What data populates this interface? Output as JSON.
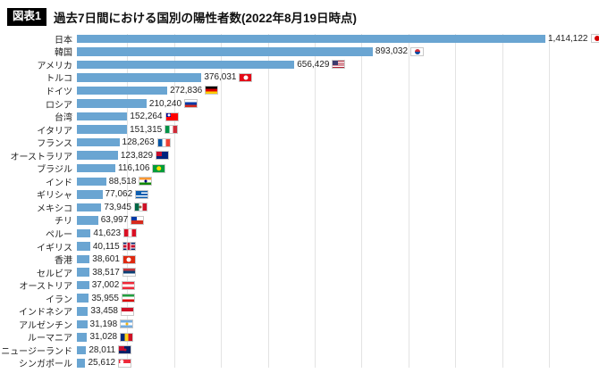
{
  "header": {
    "tag": "図表1",
    "title": "過去7日間における国別の陽性者数(2022年8月19日時点)"
  },
  "chart_data": {
    "type": "bar",
    "orientation": "horizontal",
    "title": "過去7日間における国別の陽性者数(2022年8月19日時点)",
    "xlabel": "",
    "ylabel": "",
    "xlim": [
      0,
      1414122
    ],
    "grid": true,
    "bar_color": "#6aa5d2",
    "gridline_color": "#e3e3e3",
    "rows": [
      {
        "id": "japan",
        "country": "日本",
        "value": 1414122,
        "value_label": "1,414,122",
        "flag": {
          "o": "h",
          "c": [
            "#ffffff"
          ],
          "e": {
            "c": "#d30000",
            "s": 0.6
          }
        }
      },
      {
        "id": "south-korea",
        "country": "韓国",
        "value": 893032,
        "value_label": "893,032",
        "flag": {
          "o": "h",
          "c": [
            "#ffffff"
          ],
          "e": {
            "c": [
              "#cd2e3a",
              "#0047a0"
            ],
            "s": 0.6
          }
        }
      },
      {
        "id": "usa",
        "country": "アメリカ",
        "value": 656429,
        "value_label": "656,429",
        "flag": {
          "o": "h",
          "c": [
            "#b22234",
            "#ffffff",
            "#b22234",
            "#ffffff",
            "#b22234",
            "#ffffff",
            "#b22234"
          ],
          "canton": "#3c3b6e"
        }
      },
      {
        "id": "turkey",
        "country": "トルコ",
        "value": 376031,
        "value_label": "376,031",
        "flag": {
          "o": "h",
          "c": [
            "#e30a17"
          ],
          "e": {
            "c": "#ffffff",
            "s": 0.5
          }
        }
      },
      {
        "id": "germany",
        "country": "ドイツ",
        "value": 272836,
        "value_label": "272,836",
        "flag": {
          "o": "h",
          "c": [
            "#000000",
            "#dd0000",
            "#ffce00"
          ]
        }
      },
      {
        "id": "russia",
        "country": "ロシア",
        "value": 210240,
        "value_label": "210,240",
        "flag": {
          "o": "h",
          "c": [
            "#ffffff",
            "#0039a6",
            "#d52b1e"
          ]
        }
      },
      {
        "id": "taiwan",
        "country": "台湾",
        "value": 152264,
        "value_label": "152,264",
        "flag": {
          "o": "h",
          "c": [
            "#fe0000"
          ],
          "canton": "#000095",
          "e": {
            "c": "#ffffff",
            "s": 0.3,
            "pos": "tl"
          }
        }
      },
      {
        "id": "italy",
        "country": "イタリア",
        "value": 151315,
        "value_label": "151,315",
        "flag": {
          "o": "v",
          "c": [
            "#009246",
            "#ffffff",
            "#ce2b37"
          ]
        }
      },
      {
        "id": "france",
        "country": "フランス",
        "value": 128263,
        "value_label": "128,263",
        "flag": {
          "o": "v",
          "c": [
            "#0055a4",
            "#ffffff",
            "#ef4135"
          ]
        }
      },
      {
        "id": "australia",
        "country": "オーストラリア",
        "value": 123829,
        "value_label": "123,829",
        "flag": {
          "o": "h",
          "c": [
            "#00247d"
          ],
          "canton": "#c8102e"
        }
      },
      {
        "id": "brazil",
        "country": "ブラジル",
        "value": 116106,
        "value_label": "116,106",
        "flag": {
          "o": "h",
          "c": [
            "#009c3b"
          ],
          "e": {
            "c": "#ffdf00",
            "s": 0.55
          }
        }
      },
      {
        "id": "india",
        "country": "インド",
        "value": 88518,
        "value_label": "88,518",
        "flag": {
          "o": "h",
          "c": [
            "#ff9933",
            "#ffffff",
            "#138808"
          ],
          "e": {
            "c": "#000080",
            "s": 0.3
          }
        }
      },
      {
        "id": "greece",
        "country": "ギリシャ",
        "value": 77062,
        "value_label": "77,062",
        "flag": {
          "o": "h",
          "c": [
            "#0d5eaf",
            "#ffffff",
            "#0d5eaf",
            "#ffffff",
            "#0d5eaf"
          ],
          "canton": "#0d5eaf"
        }
      },
      {
        "id": "mexico",
        "country": "メキシコ",
        "value": 73945,
        "value_label": "73,945",
        "flag": {
          "o": "v",
          "c": [
            "#006847",
            "#ffffff",
            "#ce1126"
          ],
          "e": {
            "c": "#8c6239",
            "s": 0.3
          }
        }
      },
      {
        "id": "chile",
        "country": "チリ",
        "value": 63997,
        "value_label": "63,997",
        "flag": {
          "o": "h",
          "c": [
            "#ffffff",
            "#d52b1e"
          ],
          "canton": "#0039a6"
        }
      },
      {
        "id": "peru",
        "country": "ペルー",
        "value": 41623,
        "value_label": "41,623",
        "flag": {
          "o": "v",
          "c": [
            "#d91023",
            "#ffffff",
            "#d91023"
          ]
        }
      },
      {
        "id": "uk",
        "country": "イギリス",
        "value": 40115,
        "value_label": "40,115",
        "flag": {
          "o": "h",
          "c": [
            "#012169"
          ],
          "cross": {
            "c": "#c8102e",
            "b": "#ffffff"
          }
        }
      },
      {
        "id": "hong-kong",
        "country": "香港",
        "value": 38601,
        "value_label": "38,601",
        "flag": {
          "o": "h",
          "c": [
            "#de2910"
          ],
          "e": {
            "c": "#ffffff",
            "s": 0.5
          }
        }
      },
      {
        "id": "serbia",
        "country": "セルビア",
        "value": 38517,
        "value_label": "38,517",
        "flag": {
          "o": "h",
          "c": [
            "#c6363c",
            "#0c4076",
            "#ffffff"
          ]
        }
      },
      {
        "id": "austria",
        "country": "オーストリア",
        "value": 37002,
        "value_label": "37,002",
        "flag": {
          "o": "h",
          "c": [
            "#ed2939",
            "#ffffff",
            "#ed2939"
          ]
        }
      },
      {
        "id": "iran",
        "country": "イラン",
        "value": 35955,
        "value_label": "35,955",
        "flag": {
          "o": "h",
          "c": [
            "#239f40",
            "#ffffff",
            "#da0000"
          ]
        }
      },
      {
        "id": "indonesia",
        "country": "インドネシア",
        "value": 33458,
        "value_label": "33,458",
        "flag": {
          "o": "h",
          "c": [
            "#ce1126",
            "#ffffff"
          ]
        }
      },
      {
        "id": "argentina",
        "country": "アルゼンチン",
        "value": 31198,
        "value_label": "31,198",
        "flag": {
          "o": "h",
          "c": [
            "#74acdf",
            "#ffffff",
            "#74acdf"
          ],
          "e": {
            "c": "#f6b40e",
            "s": 0.3
          }
        }
      },
      {
        "id": "romania",
        "country": "ルーマニア",
        "value": 31028,
        "value_label": "31,028",
        "flag": {
          "o": "v",
          "c": [
            "#002b7f",
            "#fcd116",
            "#ce1126"
          ]
        }
      },
      {
        "id": "new-zealand",
        "country": "ニュージーランド",
        "value": 28011,
        "value_label": "28,011",
        "flag": {
          "o": "h",
          "c": [
            "#012169"
          ],
          "canton": "#c8102e",
          "e": {
            "c": "#c8102e",
            "s": 0.3
          }
        }
      },
      {
        "id": "singapore",
        "country": "シンガポール",
        "value": 25612,
        "value_label": "25,612",
        "flag": {
          "o": "h",
          "c": [
            "#ed2939",
            "#ffffff"
          ],
          "e": {
            "c": "#ffffff",
            "s": 0.35,
            "pos": "tl"
          }
        }
      }
    ]
  }
}
